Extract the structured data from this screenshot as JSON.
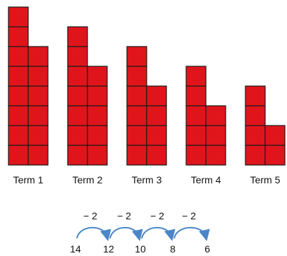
{
  "terms": [
    {
      "label": "Term 1",
      "value": 14
    },
    {
      "label": "Term 2",
      "value": 12
    },
    {
      "label": "Term 3",
      "value": 10
    },
    {
      "label": "Term 4",
      "value": 8
    },
    {
      "label": "Term 5",
      "value": 6
    }
  ],
  "differences": [
    "− 2",
    "− 2",
    "− 2",
    "− 2"
  ],
  "sequence": [
    "14",
    "12",
    "10",
    "8",
    "6"
  ],
  "colors": {
    "square": "#e0151c",
    "border": "#1a1a1a",
    "arrow": "#4a86c8"
  }
}
